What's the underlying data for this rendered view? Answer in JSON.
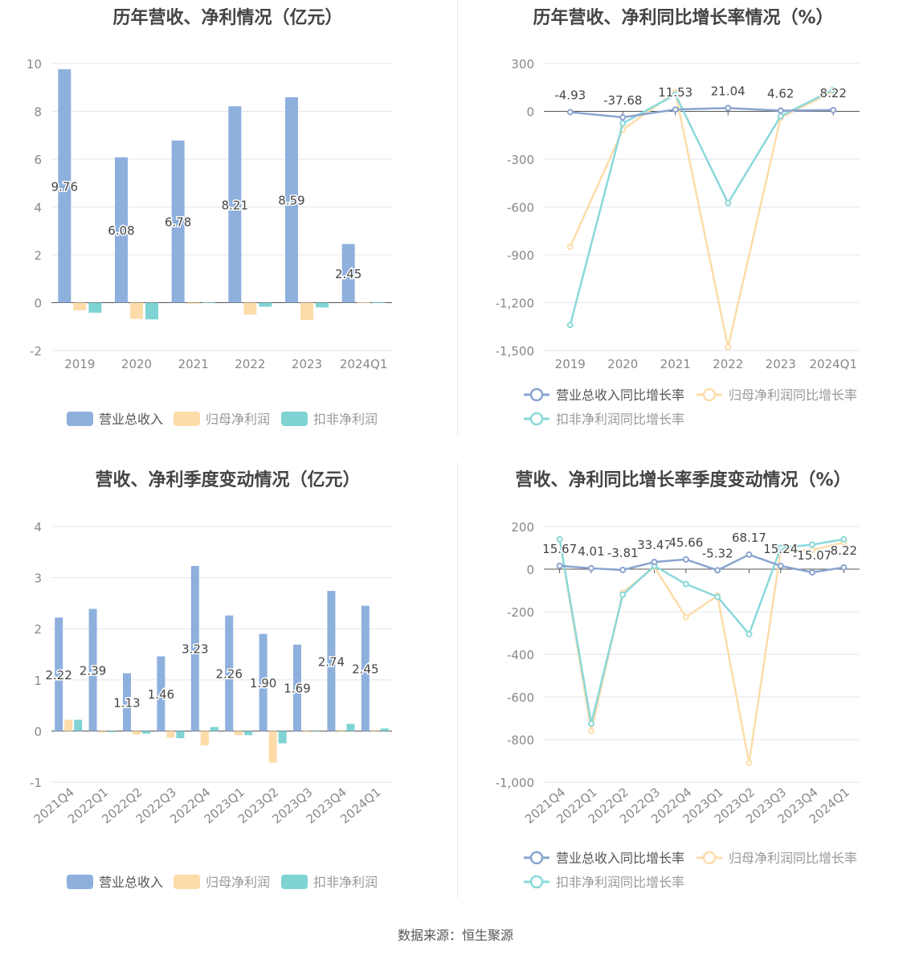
{
  "source": "数据来源：恒生聚源",
  "chart_data": [
    {
      "id": "annual_values",
      "type": "bar",
      "title": "历年营收、净利情况（亿元）",
      "categories": [
        "2019",
        "2020",
        "2021",
        "2022",
        "2023",
        "2024Q1"
      ],
      "ylim": [
        -2,
        10
      ],
      "yticks": [
        -2,
        0,
        2,
        4,
        6,
        8,
        10
      ],
      "grid": true,
      "legend_position": "bottom",
      "series": [
        {
          "name": "营业总收入",
          "color": "#8eb0dd",
          "values": [
            9.76,
            6.08,
            6.78,
            8.21,
            8.59,
            2.45
          ],
          "labels": [
            "9.76",
            "6.08",
            "6.78",
            "8.21",
            "8.59",
            "2.45"
          ]
        },
        {
          "name": "归母净利润",
          "color": "#fddcaa",
          "values": [
            -0.32,
            -0.68,
            -0.04,
            -0.5,
            -0.72,
            0.02
          ]
        },
        {
          "name": "扣非净利润",
          "color": "#7fd3d3",
          "values": [
            -0.42,
            -0.7,
            0.02,
            -0.17,
            -0.2,
            0.02
          ]
        }
      ]
    },
    {
      "id": "annual_growth",
      "type": "line",
      "title": "历年营收、净利同比增长率情况（%）",
      "categories": [
        "2019",
        "2020",
        "2021",
        "2022",
        "2023",
        "2024Q1"
      ],
      "ylim": [
        -1500,
        300
      ],
      "yticks": [
        -1500,
        -1200,
        -900,
        -600,
        -300,
        0,
        300
      ],
      "ytick_labels": [
        "-1,500",
        "-1,200",
        "-900",
        "-600",
        "-300",
        "0",
        "300"
      ],
      "grid": true,
      "legend_position": "bottom",
      "series": [
        {
          "name": "营业总收入同比增长率",
          "color": "#8aa4d0",
          "values": [
            -4.93,
            -37.68,
            11.53,
            21.04,
            4.62,
            8.22
          ],
          "labels": [
            "-4.93",
            "-37.68",
            "11.53",
            "21.04",
            "4.62",
            "8.22"
          ]
        },
        {
          "name": "归母净利润同比增长率",
          "color": "#fddcaa",
          "values": [
            -850,
            -115,
            120,
            -1480,
            -40,
            125
          ]
        },
        {
          "name": "扣非净利润同比增长率",
          "color": "#8ad8da",
          "values": [
            -1340,
            -75,
            105,
            -575,
            -30,
            135
          ]
        }
      ]
    },
    {
      "id": "quarterly_values",
      "type": "bar",
      "title": "营收、净利季度变动情况（亿元）",
      "categories": [
        "2021Q4",
        "2022Q1",
        "2022Q2",
        "2022Q3",
        "2022Q4",
        "2023Q1",
        "2023Q2",
        "2023Q3",
        "2023Q4",
        "2024Q1"
      ],
      "ylim": [
        -1,
        4
      ],
      "yticks": [
        -1,
        0,
        1,
        2,
        3,
        4
      ],
      "grid": true,
      "legend_position": "bottom",
      "series": [
        {
          "name": "营业总收入",
          "color": "#8eb0dd",
          "values": [
            2.22,
            2.39,
            1.13,
            1.46,
            3.23,
            2.26,
            1.9,
            1.69,
            2.74,
            2.45
          ],
          "labels": [
            "2.22",
            "2.39",
            "1.13",
            "1.46",
            "3.23",
            "2.26",
            "1.90",
            "1.69",
            "2.74",
            "2.45"
          ]
        },
        {
          "name": "归母净利润",
          "color": "#fddcaa",
          "values": [
            0.22,
            -0.03,
            -0.07,
            -0.13,
            -0.28,
            -0.08,
            -0.62,
            -0.02,
            0.02,
            0.02
          ]
        },
        {
          "name": "扣非净利润",
          "color": "#7fd3d3",
          "values": [
            0.22,
            -0.02,
            -0.05,
            -0.14,
            0.08,
            -0.08,
            -0.24,
            -0.01,
            0.14,
            0.05
          ]
        }
      ]
    },
    {
      "id": "quarterly_growth",
      "type": "line",
      "title": "营收、净利同比增长率季度变动情况（%）",
      "categories": [
        "2021Q4",
        "2022Q1",
        "2022Q2",
        "2022Q3",
        "2022Q4",
        "2023Q1",
        "2023Q2",
        "2023Q3",
        "2023Q4",
        "2024Q1"
      ],
      "ylim": [
        -1000,
        200
      ],
      "yticks": [
        -1000,
        -800,
        -600,
        -400,
        -200,
        0,
        200
      ],
      "ytick_labels": [
        "-1,000",
        "-800",
        "-600",
        "-400",
        "-200",
        "0",
        "200"
      ],
      "grid": true,
      "legend_position": "bottom",
      "series": [
        {
          "name": "营业总收入同比增长率",
          "color": "#8aa4d0",
          "values": [
            15.67,
            4.01,
            -3.81,
            33.47,
            45.66,
            -5.32,
            68.17,
            15.24,
            -15.07,
            8.22
          ],
          "labels": [
            "15.67",
            "4.01",
            "-3.81",
            "33.47",
            "45.66",
            "-5.32",
            "68.17",
            "15.24",
            "-15.07",
            "8.22"
          ]
        },
        {
          "name": "归母净利润同比增长率",
          "color": "#fddcaa",
          "values": [
            140,
            -760,
            -110,
            10,
            -225,
            -125,
            -910,
            85,
            90,
            125
          ]
        },
        {
          "name": "扣非净利润同比增长率",
          "color": "#8ad8da",
          "values": [
            140,
            -725,
            -120,
            15,
            -70,
            -130,
            -305,
            100,
            115,
            140
          ]
        }
      ]
    }
  ]
}
